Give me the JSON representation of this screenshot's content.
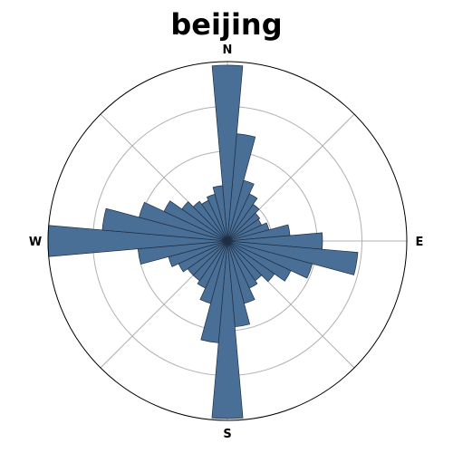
{
  "chart_data": {
    "type": "polar-bar",
    "title": "beijing",
    "directions": [
      "N",
      "E",
      "S",
      "W"
    ],
    "bin_count": 36,
    "bin_width_deg": 10,
    "r_max": 1.0,
    "radial_grid": [
      0.25,
      0.5,
      0.75
    ],
    "angular_grid_deg": [
      0,
      45,
      90,
      135,
      180,
      225,
      270,
      315
    ],
    "bar_color": "#4a6f97",
    "bar_edge_color": "#1f2f44",
    "values": [
      0.98,
      0.6,
      0.35,
      0.29,
      0.25,
      0.22,
      0.21,
      0.24,
      0.35,
      0.53,
      0.73,
      0.49,
      0.39,
      0.32,
      0.27,
      0.29,
      0.36,
      0.48,
      0.99,
      0.57,
      0.36,
      0.29,
      0.27,
      0.27,
      0.3,
      0.34,
      0.5,
      1.0,
      0.7,
      0.51,
      0.39,
      0.31,
      0.27,
      0.25,
      0.27,
      0.31
    ]
  }
}
